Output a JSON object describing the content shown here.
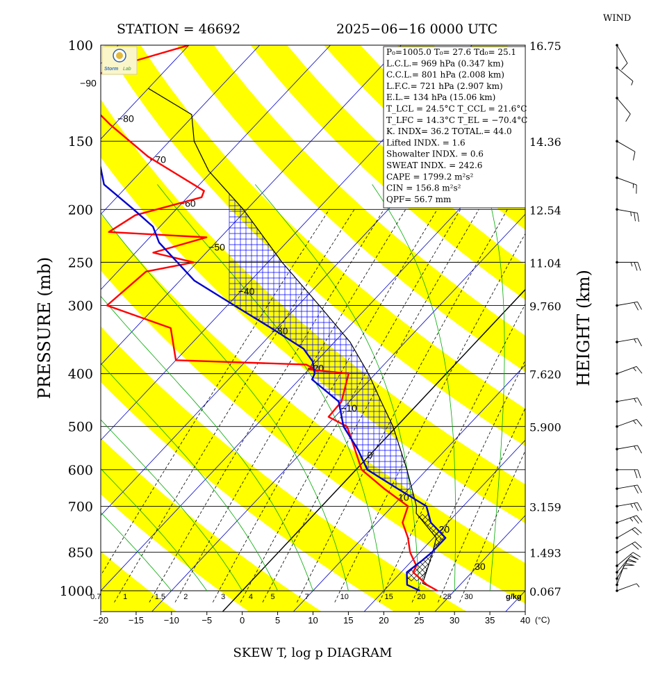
{
  "header": {
    "station": "STATION = 46692",
    "datetime": "2025−06−16 0000 UTC",
    "wind_label": "WIND",
    "footer_title": "SKEW T, log p DIAGRAM"
  },
  "colors": {
    "temperature": "#ff0000",
    "dewpoint": "#0000cc",
    "parcel": "#000000",
    "isotherm": "#0000cc",
    "dry_adiabat_band": "#ffff00",
    "moist_adiabat": "#00aa00",
    "mixing_ratio": "#000000",
    "cape_hatch": "#0000ff",
    "cin_hatch": "#000000"
  },
  "icons": {
    "logo": "lab-logo-icon"
  },
  "indices": [
    "P₀=1005.0  T₀= 27.6  Td₀= 25.1",
    "L.C.L.=  969 hPa (0.347 km)",
    "C.C.L.=  801 hPa (2.008 km)",
    "L.F.C.=  721 hPa (2.907 km)",
    "E.L.=  134 hPa (15.06 km)",
    "T_LCL = 24.5°C  T_CCL = 21.6°C",
    "T_LFC = 14.3°C  T_EL = −70.4°C",
    "K. INDX= 36.2  TOTAL.= 44.0",
    "Lifted INDX. =    1.6",
    "Showalter INDX. =     0.6",
    "SWEAT INDX. =   242.6",
    "CAPE = 1799.2 m²s²",
    "CIN   =   156.8 m²s²",
    "QPF= 56.7 mm"
  ],
  "chart_data": {
    "type": "line",
    "title": "SKEW T, log p DIAGRAM",
    "ylabel_left": "PRESSURE (mb)",
    "ylabel_right": "HEIGHT (km)",
    "xlabel_unit": "(°C)",
    "mixing_ratio_unit": "g/kg",
    "x_ticks": [
      -20,
      -15,
      -10,
      -5,
      0,
      5,
      10,
      15,
      20,
      25,
      30,
      35,
      40
    ],
    "xlim": [
      -20,
      40
    ],
    "pressure_levels": [
      {
        "p": 100,
        "label": "100",
        "height": "16.75"
      },
      {
        "p": 150,
        "label": "150",
        "height": "14.36"
      },
      {
        "p": 200,
        "label": "200",
        "height": "12.54"
      },
      {
        "p": 250,
        "label": "250",
        "height": "11.04"
      },
      {
        "p": 300,
        "label": "300",
        "height": "9.760"
      },
      {
        "p": 400,
        "label": "400",
        "height": "7.620"
      },
      {
        "p": 500,
        "label": "500",
        "height": "5.900"
      },
      {
        "p": 600,
        "label": "600",
        "height": ""
      },
      {
        "p": 700,
        "label": "700",
        "height": "3.159"
      },
      {
        "p": 850,
        "label": "850",
        "height": "1.493"
      },
      {
        "p": 1000,
        "label": "1000",
        "height": "0.067"
      }
    ],
    "isotherm_labels": [
      {
        "t": -90,
        "p": 118,
        "label": "−90"
      },
      {
        "t": -80,
        "p": 137,
        "label": "−80"
      },
      {
        "t": -70,
        "p": 163,
        "label": "−70"
      },
      {
        "t": -60,
        "p": 196,
        "label": "−60"
      },
      {
        "t": -50,
        "p": 236,
        "label": "−50"
      },
      {
        "t": -40,
        "p": 284,
        "label": "−40"
      },
      {
        "t": -30,
        "p": 336,
        "label": "−30"
      },
      {
        "t": -20,
        "p": 393,
        "label": "−20"
      },
      {
        "t": -10,
        "p": 465,
        "label": "−10"
      },
      {
        "t": 0,
        "p": 567,
        "label": "0"
      },
      {
        "t": 10,
        "p": 678,
        "label": "10"
      },
      {
        "t": 20,
        "p": 776,
        "label": "20"
      },
      {
        "t": 30,
        "p": 908,
        "label": "30"
      }
    ],
    "mixing_ratios": [
      "0.7",
      "1",
      "1.5",
      "2",
      "3",
      "4",
      "5",
      "7",
      "10",
      "15",
      "20",
      "25",
      "30"
    ],
    "temperature_profile": [
      {
        "p": 1000,
        "t": 27.6
      },
      {
        "p": 975,
        "t": 25.3
      },
      {
        "p": 925,
        "t": 21.7
      },
      {
        "p": 900,
        "t": 21.3
      },
      {
        "p": 850,
        "t": 18.6
      },
      {
        "p": 800,
        "t": 16.4
      },
      {
        "p": 750,
        "t": 13.6
      },
      {
        "p": 700,
        "t": 12.2
      },
      {
        "p": 650,
        "t": 6.5
      },
      {
        "p": 600,
        "t": 0.8
      },
      {
        "p": 550,
        "t": -2.9
      },
      {
        "p": 500,
        "t": -7.0
      },
      {
        "p": 480,
        "t": -10.9
      },
      {
        "p": 450,
        "t": -11.1
      },
      {
        "p": 400,
        "t": -13.8
      },
      {
        "p": 393,
        "t": -20.0
      },
      {
        "p": 391,
        "t": -19.5
      },
      {
        "p": 385,
        "t": -21.0
      },
      {
        "p": 378,
        "t": -40.0
      },
      {
        "p": 330,
        "t": -45.0
      },
      {
        "p": 300,
        "t": -57.0
      },
      {
        "p": 260,
        "t": -56.0
      },
      {
        "p": 250,
        "t": -50.5
      },
      {
        "p": 240,
        "t": -57.5
      },
      {
        "p": 225,
        "t": -52.0
      },
      {
        "p": 220,
        "t": -66.5
      },
      {
        "p": 205,
        "t": -65.0
      },
      {
        "p": 190,
        "t": -58.0
      },
      {
        "p": 185,
        "t": -58.5
      },
      {
        "p": 160,
        "t": -71.0
      },
      {
        "p": 140,
        "t": -80.5
      },
      {
        "p": 120,
        "t": -90.5
      },
      {
        "p": 110,
        "t": -88.0
      },
      {
        "p": 100,
        "t": -80.0
      }
    ],
    "dewpoint_profile": [
      {
        "p": 1000,
        "t": 25.1
      },
      {
        "p": 975,
        "t": 22.5
      },
      {
        "p": 925,
        "t": 20.8
      },
      {
        "p": 880,
        "t": 21.4
      },
      {
        "p": 850,
        "t": 21.7
      },
      {
        "p": 800,
        "t": 21.7
      },
      {
        "p": 750,
        "t": 17.6
      },
      {
        "p": 700,
        "t": 14.8
      },
      {
        "p": 650,
        "t": 8.4
      },
      {
        "p": 600,
        "t": 1.6
      },
      {
        "p": 550,
        "t": -2.5
      },
      {
        "p": 500,
        "t": -7.5
      },
      {
        "p": 450,
        "t": -11.5
      },
      {
        "p": 410,
        "t": -18.2
      },
      {
        "p": 400,
        "t": -18.6
      },
      {
        "p": 380,
        "t": -20.5
      },
      {
        "p": 360,
        "t": -23.5
      },
      {
        "p": 330,
        "t": -30.8
      },
      {
        "p": 300,
        "t": -39.0
      },
      {
        "p": 270,
        "t": -48.0
      },
      {
        "p": 230,
        "t": -58.0
      },
      {
        "p": 215,
        "t": -61.0
      },
      {
        "p": 200,
        "t": -66.0
      },
      {
        "p": 180,
        "t": -73.5
      },
      {
        "p": 160,
        "t": -78.0
      },
      {
        "p": 140,
        "t": -88.0
      },
      {
        "p": 120,
        "t": -96.0
      },
      {
        "p": 110,
        "t": -101.0
      },
      {
        "p": 100,
        "t": -99.0
      }
    ],
    "parcel_profile": [
      {
        "p": 1000,
        "t": 27.6
      },
      {
        "p": 969,
        "t": 24.5
      },
      {
        "p": 900,
        "t": 23.0
      },
      {
        "p": 850,
        "t": 21.8
      },
      {
        "p": 800,
        "t": 20.4
      },
      {
        "p": 721,
        "t": 14.3
      },
      {
        "p": 700,
        "t": 13.4
      },
      {
        "p": 600,
        "t": 7.2
      },
      {
        "p": 500,
        "t": -0.5
      },
      {
        "p": 450,
        "t": -5.5
      },
      {
        "p": 400,
        "t": -11.0
      },
      {
        "p": 350,
        "t": -17.8
      },
      {
        "p": 300,
        "t": -27.0
      },
      {
        "p": 250,
        "t": -38.0
      },
      {
        "p": 200,
        "t": -50.5
      },
      {
        "p": 170,
        "t": -60.5
      },
      {
        "p": 150,
        "t": -66.5
      },
      {
        "p": 134,
        "t": -70.4
      },
      {
        "p": 120,
        "t": -80.0
      }
    ],
    "wind_barbs": [
      {
        "p": 1000,
        "dir": 250,
        "kt": 5
      },
      {
        "p": 975,
        "dir": 200,
        "kt": 15
      },
      {
        "p": 950,
        "dir": 210,
        "kt": 20
      },
      {
        "p": 925,
        "dir": 220,
        "kt": 20
      },
      {
        "p": 900,
        "dir": 230,
        "kt": 20
      },
      {
        "p": 850,
        "dir": 240,
        "kt": 20
      },
      {
        "p": 800,
        "dir": 240,
        "kt": 20
      },
      {
        "p": 750,
        "dir": 250,
        "kt": 25
      },
      {
        "p": 700,
        "dir": 260,
        "kt": 25
      },
      {
        "p": 650,
        "dir": 260,
        "kt": 20
      },
      {
        "p": 600,
        "dir": 270,
        "kt": 20
      },
      {
        "p": 550,
        "dir": 260,
        "kt": 15
      },
      {
        "p": 500,
        "dir": 250,
        "kt": 15
      },
      {
        "p": 450,
        "dir": 260,
        "kt": 15
      },
      {
        "p": 400,
        "dir": 250,
        "kt": 15
      },
      {
        "p": 350,
        "dir": 260,
        "kt": 15
      },
      {
        "p": 300,
        "dir": 260,
        "kt": 20
      },
      {
        "p": 250,
        "dir": 270,
        "kt": 25
      },
      {
        "p": 200,
        "dir": 280,
        "kt": 25
      },
      {
        "p": 175,
        "dir": 290,
        "kt": 15
      },
      {
        "p": 150,
        "dir": 300,
        "kt": 10
      },
      {
        "p": 125,
        "dir": 320,
        "kt": 10
      },
      {
        "p": 110,
        "dir": 310,
        "kt": 5
      },
      {
        "p": 100,
        "dir": 330,
        "kt": 10
      }
    ]
  }
}
